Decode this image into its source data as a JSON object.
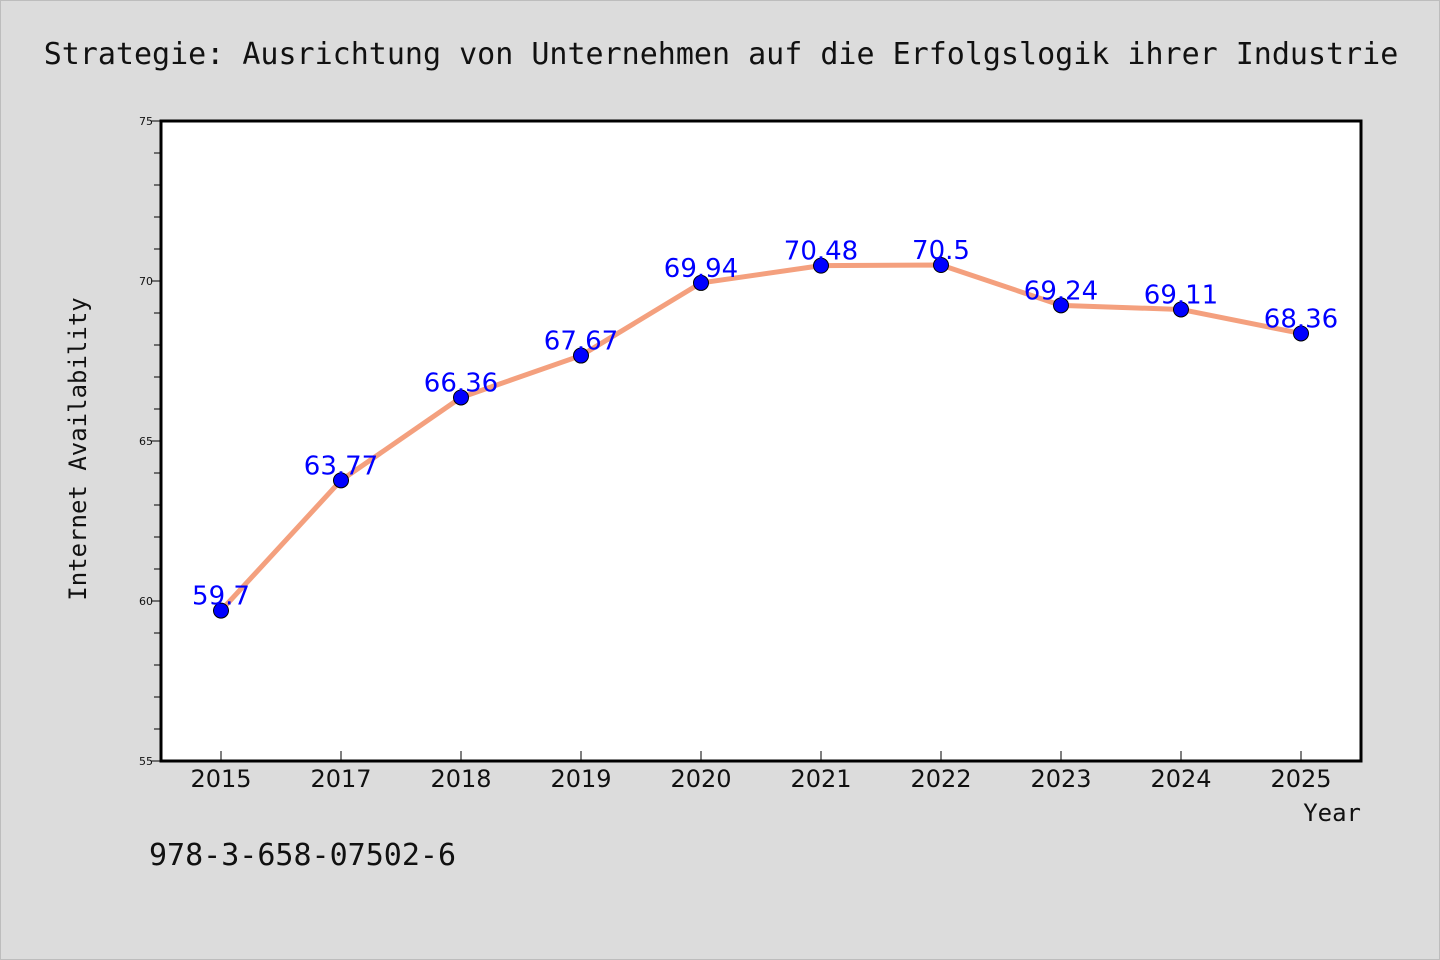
{
  "chart_data": {
    "type": "line",
    "title": "Strategie: Ausrichtung von Unternehmen auf die Erfolgslogik ihrer Industrie",
    "xlabel": "Year",
    "ylabel": "Internet Availability",
    "categories": [
      "2015",
      "2017",
      "2018",
      "2019",
      "2020",
      "2021",
      "2022",
      "2023",
      "2024",
      "2025"
    ],
    "series": [
      {
        "values": [
          59.7,
          63.77,
          66.36,
          67.67,
          69.94,
          70.48,
          70.5,
          69.24,
          69.11,
          68.36
        ],
        "labels": [
          "59.7",
          "63.77",
          "66.36",
          "67.67",
          "69.94",
          "70.48",
          "70.5",
          "69.24",
          "69.11",
          "68.36"
        ],
        "line_color": "#f4a07e",
        "marker_color": "#0000ff",
        "label_color": "#0000ff"
      }
    ],
    "ylim": [
      55,
      75
    ],
    "yticks": [
      "55",
      "60",
      "65",
      "70",
      "75"
    ],
    "grid": false,
    "data_labels": true
  },
  "footer": {
    "isbn": "978-3-658-07502-6"
  },
  "colors": {
    "background": "#dcdcdc",
    "plot_area": "#ffffff",
    "axis": "#000000"
  }
}
